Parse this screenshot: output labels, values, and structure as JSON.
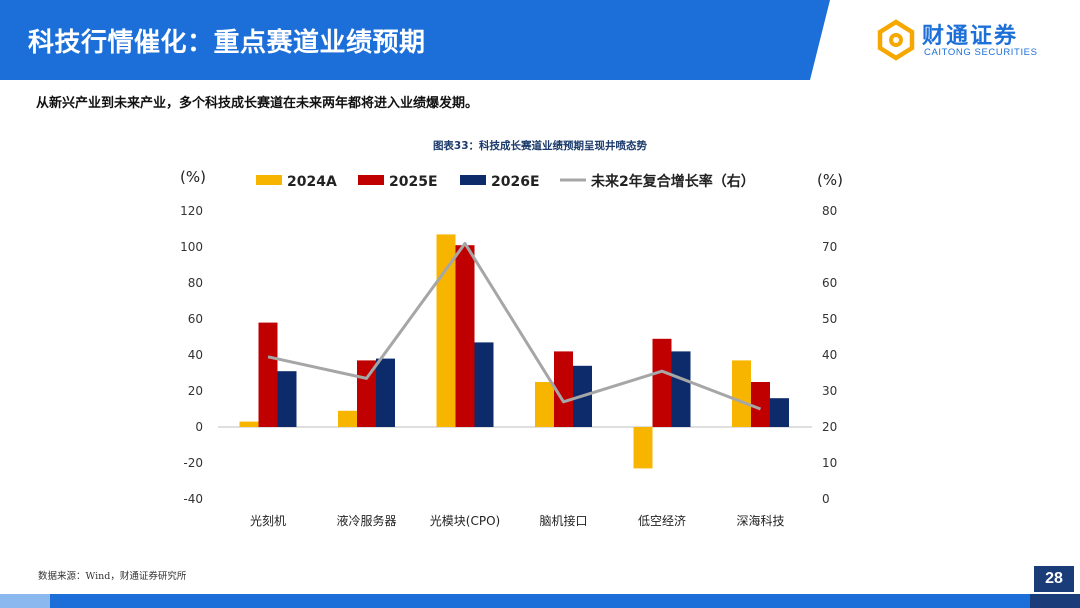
{
  "header": {
    "title": "科技行情催化：重点赛道业绩预期",
    "logo_cn": "财通证券",
    "logo_en": "CAITONG SECURITIES",
    "colors": {
      "brand_blue": "#1c6fd8",
      "navy": "#1a3d7a"
    }
  },
  "subtitle": "从新兴产业到未来产业，多个科技成长赛道在未来两年都将进入业绩爆发期。",
  "figure_title": "图表33：科技成长赛道业绩预期呈现井喷态势",
  "source": "数据来源：Wind，财通证券研究所",
  "page_number": "28",
  "chart_data": {
    "type": "bar",
    "categories": [
      "光刻机",
      "液冷服务器",
      "光模块(CPO)",
      "脑机接口",
      "低空经济",
      "深海科技"
    ],
    "series": [
      {
        "name": "2024A",
        "values": [
          3,
          9,
          107,
          25,
          -23,
          37
        ],
        "color": "#f7b500"
      },
      {
        "name": "2025E",
        "values": [
          58,
          37,
          101,
          42,
          49,
          25
        ],
        "color": "#c00000"
      },
      {
        "name": "2026E",
        "values": [
          31,
          38,
          47,
          34,
          42,
          16
        ],
        "color": "#0d2a6b"
      }
    ],
    "line_series": {
      "name": "未来2年复合增长率（右）",
      "values": [
        39.5,
        33.5,
        71,
        27,
        35.5,
        25
      ],
      "color": "#a6a6a6",
      "axis": "right"
    },
    "y_left": {
      "label": "(%)",
      "ylim": [
        -40,
        120
      ],
      "ticks": [
        "120",
        "100",
        "80",
        "60",
        "40",
        "20",
        "0",
        "-20",
        "-40"
      ]
    },
    "y_right": {
      "label": "(%)",
      "ylim": [
        0,
        80
      ],
      "ticks": [
        "80",
        "70",
        "60",
        "50",
        "40",
        "30",
        "20",
        "10",
        "0"
      ]
    },
    "legend_position": "top",
    "grid": false
  }
}
